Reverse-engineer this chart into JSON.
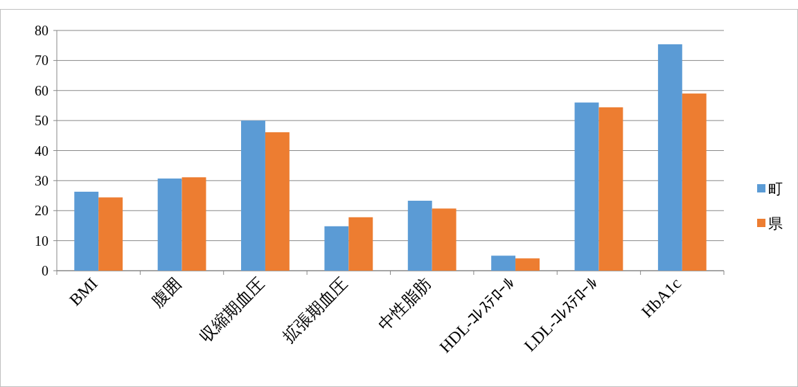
{
  "chart_data": {
    "type": "bar",
    "categories": [
      "BMI",
      "腹囲",
      "収縮期血圧",
      "拡張期血圧",
      "中性脂肪",
      "HDL-ｺﾚｽﾃﾛｰﾙ",
      "LDL-ｺﾚｽﾃﾛｰﾙ",
      "HbA1c"
    ],
    "series": [
      {
        "name": "町",
        "color": "#5b9bd5",
        "values": [
          26.3,
          30.7,
          50.0,
          14.8,
          23.3,
          5.0,
          56.0,
          75.4
        ]
      },
      {
        "name": "県",
        "color": "#ed7d31",
        "values": [
          24.4,
          31.1,
          46.1,
          17.8,
          20.7,
          4.1,
          54.4,
          59.0
        ]
      }
    ],
    "ylim": [
      0,
      80
    ],
    "yticks": [
      0,
      10,
      20,
      30,
      40,
      50,
      60,
      70,
      80
    ],
    "grid": "y",
    "legend": "right"
  }
}
